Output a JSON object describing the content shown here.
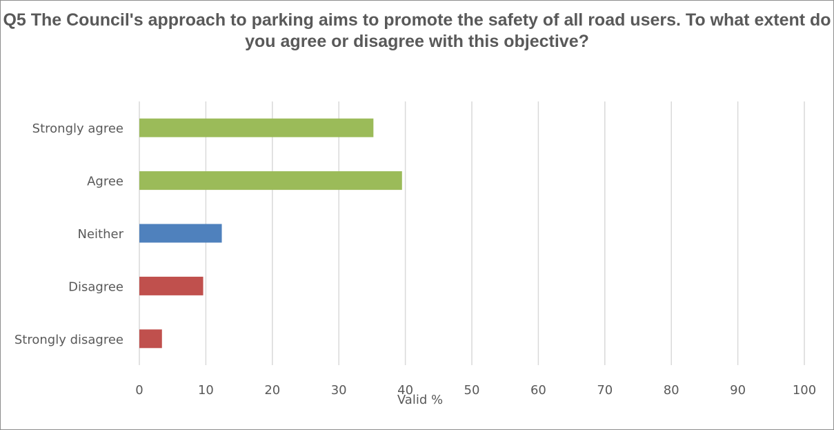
{
  "chart_data": {
    "type": "bar",
    "orientation": "horizontal",
    "title": "Q5 The Council's approach to parking aims to promote the safety of all road users. To what extent do you agree or disagree with this objective?",
    "xlabel": "Valid %",
    "ylabel": "",
    "categories": [
      "Strongly agree",
      "Agree",
      "Neither",
      "Disagree",
      "Strongly disagree"
    ],
    "values": [
      35.2,
      39.5,
      12.4,
      9.6,
      3.4
    ],
    "colors": [
      "#9bbb59",
      "#9bbb59",
      "#4f81bd",
      "#c0504d",
      "#c0504d"
    ],
    "xlim": [
      0,
      100
    ],
    "xticks": [
      0,
      10,
      20,
      30,
      40,
      50,
      60,
      70,
      80,
      90,
      100
    ],
    "grid": "vertical",
    "legend": "none"
  }
}
